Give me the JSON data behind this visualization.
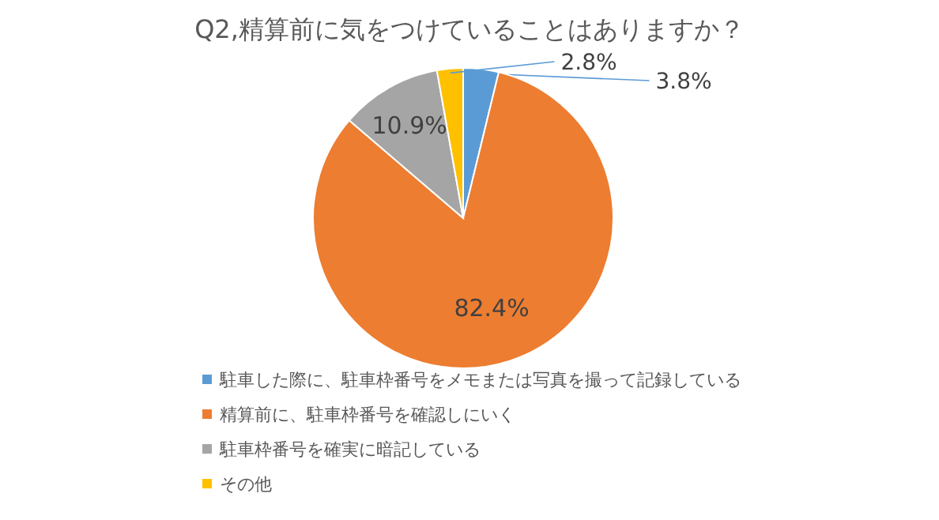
{
  "chart_data": {
    "type": "pie",
    "title": "Q2,精算前に気をつけていることはありますか？",
    "categories": [
      "駐車した際に、駐車枠番号をメモまたは写真を撮って記録している",
      "精算前に、駐車枠番号を確認しにいく",
      "駐車枠番号を確実に暗記している",
      "その他"
    ],
    "values": [
      3.8,
      82.4,
      10.9,
      2.8
    ],
    "colors": [
      "#5b9bd5",
      "#ed7d31",
      "#a5a5a5",
      "#ffc000"
    ],
    "value_labels": [
      "3.8%",
      "82.4%",
      "10.9%",
      "2.8%"
    ],
    "legend": "bottom"
  }
}
